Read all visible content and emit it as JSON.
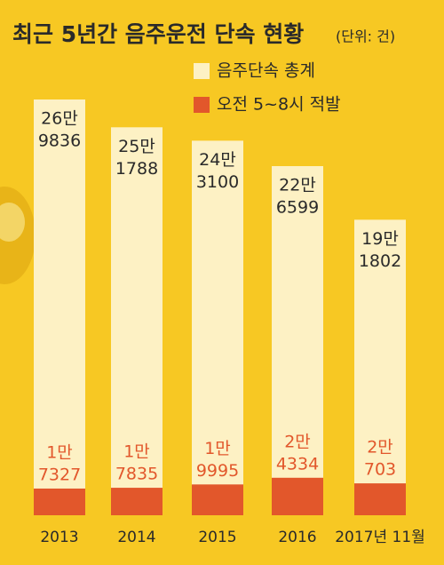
{
  "chart_data": {
    "type": "bar",
    "title": "최근 5년간 음주운전 단속 현황",
    "subtitle": "(단위: 건)",
    "categories": [
      "2013",
      "2014",
      "2015",
      "2016",
      "2017년 11월"
    ],
    "series": [
      {
        "name": "음주단속 총계",
        "color": "#fdf1c4",
        "values": [
          269836,
          251788,
          243100,
          226599,
          191802
        ],
        "value_labels": [
          [
            "26만",
            "9836"
          ],
          [
            "25만",
            "1788"
          ],
          [
            "24만",
            "3100"
          ],
          [
            "22만",
            "6599"
          ],
          [
            "19만",
            "1802"
          ]
        ]
      },
      {
        "name": "오전 5~8시 적발",
        "color": "#e2572b",
        "values": [
          17327,
          17835,
          19995,
          24334,
          20703
        ],
        "value_labels": [
          [
            "1만",
            "7327"
          ],
          [
            "1만",
            "7835"
          ],
          [
            "1만",
            "9995"
          ],
          [
            "2만",
            "4334"
          ],
          [
            "2만",
            "703"
          ]
        ]
      }
    ]
  }
}
